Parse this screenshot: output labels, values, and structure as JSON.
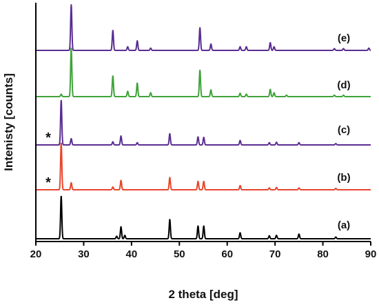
{
  "chart_data": {
    "type": "line",
    "xlabel": "2 theta [deg]",
    "ylabel": "Intenisty [counts]",
    "xlim": [
      20,
      90
    ],
    "xticks": [
      20,
      30,
      40,
      50,
      60,
      70,
      80,
      90
    ],
    "yticks": [],
    "grid": false,
    "legend": "none",
    "series": [
      {
        "label": "(a)",
        "color": "#000000",
        "marker": "",
        "peaks": [
          [
            25.3,
            1.0
          ],
          [
            36.9,
            0.06
          ],
          [
            37.8,
            0.28
          ],
          [
            38.6,
            0.08
          ],
          [
            48.0,
            0.45
          ],
          [
            53.9,
            0.3
          ],
          [
            55.1,
            0.3
          ],
          [
            62.7,
            0.14
          ],
          [
            68.8,
            0.07
          ],
          [
            70.3,
            0.08
          ],
          [
            75.0,
            0.11
          ],
          [
            82.7,
            0.04
          ]
        ]
      },
      {
        "label": "(b)",
        "color": "#e8452c",
        "marker": "*",
        "peaks": [
          [
            25.3,
            1.0
          ],
          [
            27.4,
            0.15
          ],
          [
            36.1,
            0.06
          ],
          [
            37.8,
            0.2
          ],
          [
            48.0,
            0.26
          ],
          [
            53.9,
            0.18
          ],
          [
            55.1,
            0.18
          ],
          [
            62.7,
            0.09
          ],
          [
            68.8,
            0.04
          ],
          [
            70.3,
            0.05
          ],
          [
            75.0,
            0.04
          ],
          [
            82.7,
            0.03
          ]
        ]
      },
      {
        "label": "(c)",
        "color": "#5a2d91",
        "marker": "*",
        "peaks": [
          [
            25.3,
            1.0
          ],
          [
            27.4,
            0.14
          ],
          [
            36.1,
            0.07
          ],
          [
            37.8,
            0.2
          ],
          [
            41.2,
            0.05
          ],
          [
            48.0,
            0.25
          ],
          [
            53.9,
            0.18
          ],
          [
            55.1,
            0.17
          ],
          [
            62.7,
            0.1
          ],
          [
            68.8,
            0.05
          ],
          [
            70.3,
            0.06
          ],
          [
            75.0,
            0.05
          ],
          [
            82.7,
            0.03
          ]
        ]
      },
      {
        "label": "(d)",
        "color": "#3fa33a",
        "marker": "",
        "peaks": [
          [
            25.3,
            0.05
          ],
          [
            27.4,
            1.0
          ],
          [
            36.1,
            0.43
          ],
          [
            39.2,
            0.11
          ],
          [
            41.2,
            0.28
          ],
          [
            44.0,
            0.08
          ],
          [
            54.3,
            0.55
          ],
          [
            56.6,
            0.14
          ],
          [
            62.7,
            0.07
          ],
          [
            64.0,
            0.05
          ],
          [
            69.0,
            0.15
          ],
          [
            69.8,
            0.08
          ],
          [
            72.4,
            0.03
          ],
          [
            82.4,
            0.03
          ],
          [
            84.3,
            0.03
          ]
        ]
      },
      {
        "label": "(e)",
        "color": "#5a2d91",
        "marker": "",
        "peaks": [
          [
            27.4,
            1.0
          ],
          [
            36.1,
            0.44
          ],
          [
            39.2,
            0.08
          ],
          [
            41.2,
            0.21
          ],
          [
            44.0,
            0.05
          ],
          [
            54.3,
            0.5
          ],
          [
            56.6,
            0.14
          ],
          [
            62.7,
            0.08
          ],
          [
            64.0,
            0.08
          ],
          [
            69.0,
            0.17
          ],
          [
            69.8,
            0.08
          ],
          [
            82.4,
            0.04
          ],
          [
            84.3,
            0.04
          ],
          [
            89.6,
            0.05
          ]
        ]
      }
    ]
  }
}
